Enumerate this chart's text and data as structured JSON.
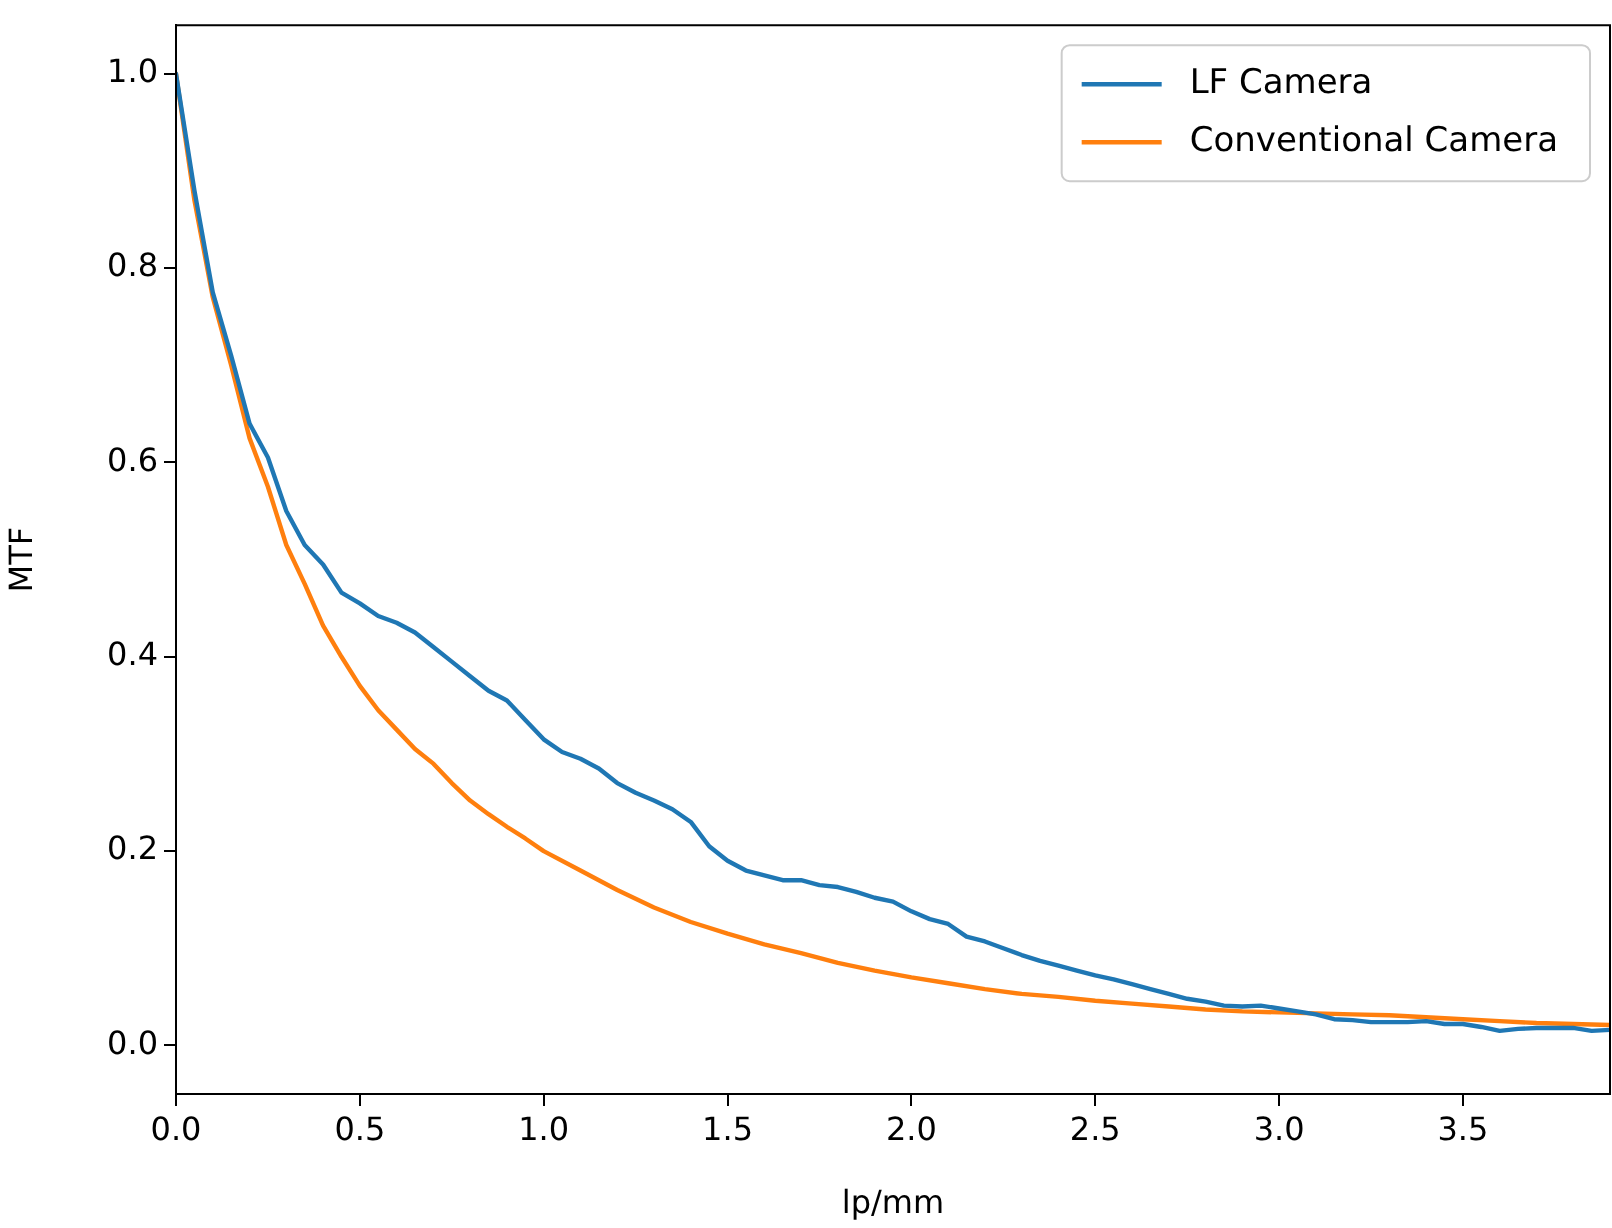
{
  "chart_data": {
    "type": "line",
    "xlabel": "lp/mm",
    "ylabel": "MTF",
    "xlim": [
      0,
      3.9
    ],
    "ylim": [
      -0.05,
      1.05
    ],
    "xticks": [
      {
        "value": 0,
        "label": "0.0"
      },
      {
        "value": 0.5,
        "label": "0.5"
      },
      {
        "value": 1,
        "label": "1.0"
      },
      {
        "value": 1.5,
        "label": "1.5"
      },
      {
        "value": 2,
        "label": "2.0"
      },
      {
        "value": 2.5,
        "label": "2.5"
      },
      {
        "value": 3,
        "label": "3.0"
      },
      {
        "value": 3.5,
        "label": "3.5"
      }
    ],
    "yticks": [
      {
        "value": 0,
        "label": "0.0"
      },
      {
        "value": 0.2,
        "label": "0.2"
      },
      {
        "value": 0.4,
        "label": "0.4"
      },
      {
        "value": 0.6,
        "label": "0.6"
      },
      {
        "value": 0.8,
        "label": "0.8"
      },
      {
        "value": 1,
        "label": "1.0"
      }
    ],
    "grid": false,
    "legend": "top right",
    "marker": "none",
    "line_style": "solid",
    "series": [
      {
        "name": "LF Camera",
        "color": "#1f77b4",
        "x": [
          0,
          0.05,
          0.1,
          0.15,
          0.2,
          0.25,
          0.3,
          0.35,
          0.4,
          0.45,
          0.5,
          0.55,
          0.6,
          0.65,
          0.7,
          0.75,
          0.8,
          0.85,
          0.9,
          0.95,
          1.0,
          1.05,
          1.1,
          1.15,
          1.2,
          1.25,
          1.3,
          1.35,
          1.4,
          1.45,
          1.5,
          1.55,
          1.6,
          1.65,
          1.7,
          1.75,
          1.8,
          1.85,
          1.9,
          1.95,
          2.0,
          2.05,
          2.1,
          2.15,
          2.2,
          2.25,
          2.3,
          2.35,
          2.4,
          2.45,
          2.5,
          2.55,
          2.6,
          2.65,
          2.7,
          2.75,
          2.8,
          2.85,
          2.9,
          2.95,
          3.0,
          3.05,
          3.1,
          3.15,
          3.2,
          3.25,
          3.3,
          3.35,
          3.4,
          3.45,
          3.5,
          3.55,
          3.6,
          3.65,
          3.7,
          3.75,
          3.8,
          3.85,
          3.9
        ],
        "values": [
          1.0,
          0.88,
          0.775,
          0.71,
          0.64,
          0.605,
          0.55,
          0.515,
          0.495,
          0.466,
          0.455,
          0.442,
          0.435,
          0.425,
          0.41,
          0.395,
          0.38,
          0.365,
          0.355,
          0.335,
          0.315,
          0.302,
          0.295,
          0.285,
          0.27,
          0.26,
          0.252,
          0.243,
          0.23,
          0.205,
          0.19,
          0.18,
          0.175,
          0.17,
          0.17,
          0.165,
          0.163,
          0.158,
          0.152,
          0.148,
          0.138,
          0.13,
          0.125,
          0.112,
          0.107,
          0.1,
          0.093,
          0.087,
          0.082,
          0.077,
          0.072,
          0.068,
          0.063,
          0.058,
          0.053,
          0.048,
          0.045,
          0.041,
          0.04,
          0.041,
          0.038,
          0.035,
          0.032,
          0.027,
          0.026,
          0.024,
          0.024,
          0.024,
          0.025,
          0.022,
          0.022,
          0.019,
          0.015,
          0.017,
          0.018,
          0.018,
          0.018,
          0.015,
          0.016
        ]
      },
      {
        "name": "Conventional Camera",
        "color": "#ff7f0e",
        "x": [
          0,
          0.05,
          0.1,
          0.15,
          0.2,
          0.25,
          0.3,
          0.35,
          0.4,
          0.45,
          0.5,
          0.55,
          0.6,
          0.65,
          0.7,
          0.75,
          0.8,
          0.85,
          0.9,
          0.95,
          1.0,
          1.1,
          1.2,
          1.3,
          1.4,
          1.5,
          1.6,
          1.7,
          1.8,
          1.9,
          2.0,
          2.1,
          2.2,
          2.3,
          2.4,
          2.5,
          2.6,
          2.7,
          2.8,
          2.9,
          3.0,
          3.1,
          3.2,
          3.3,
          3.4,
          3.5,
          3.6,
          3.7,
          3.8,
          3.9
        ],
        "values": [
          1.0,
          0.87,
          0.77,
          0.7,
          0.625,
          0.575,
          0.515,
          0.475,
          0.432,
          0.4,
          0.37,
          0.345,
          0.325,
          0.305,
          0.29,
          0.27,
          0.252,
          0.238,
          0.225,
          0.213,
          0.2,
          0.18,
          0.16,
          0.142,
          0.127,
          0.115,
          0.104,
          0.095,
          0.085,
          0.077,
          0.07,
          0.064,
          0.058,
          0.053,
          0.05,
          0.046,
          0.043,
          0.04,
          0.037,
          0.035,
          0.034,
          0.033,
          0.032,
          0.031,
          0.029,
          0.027,
          0.025,
          0.023,
          0.022,
          0.021
        ]
      }
    ]
  }
}
